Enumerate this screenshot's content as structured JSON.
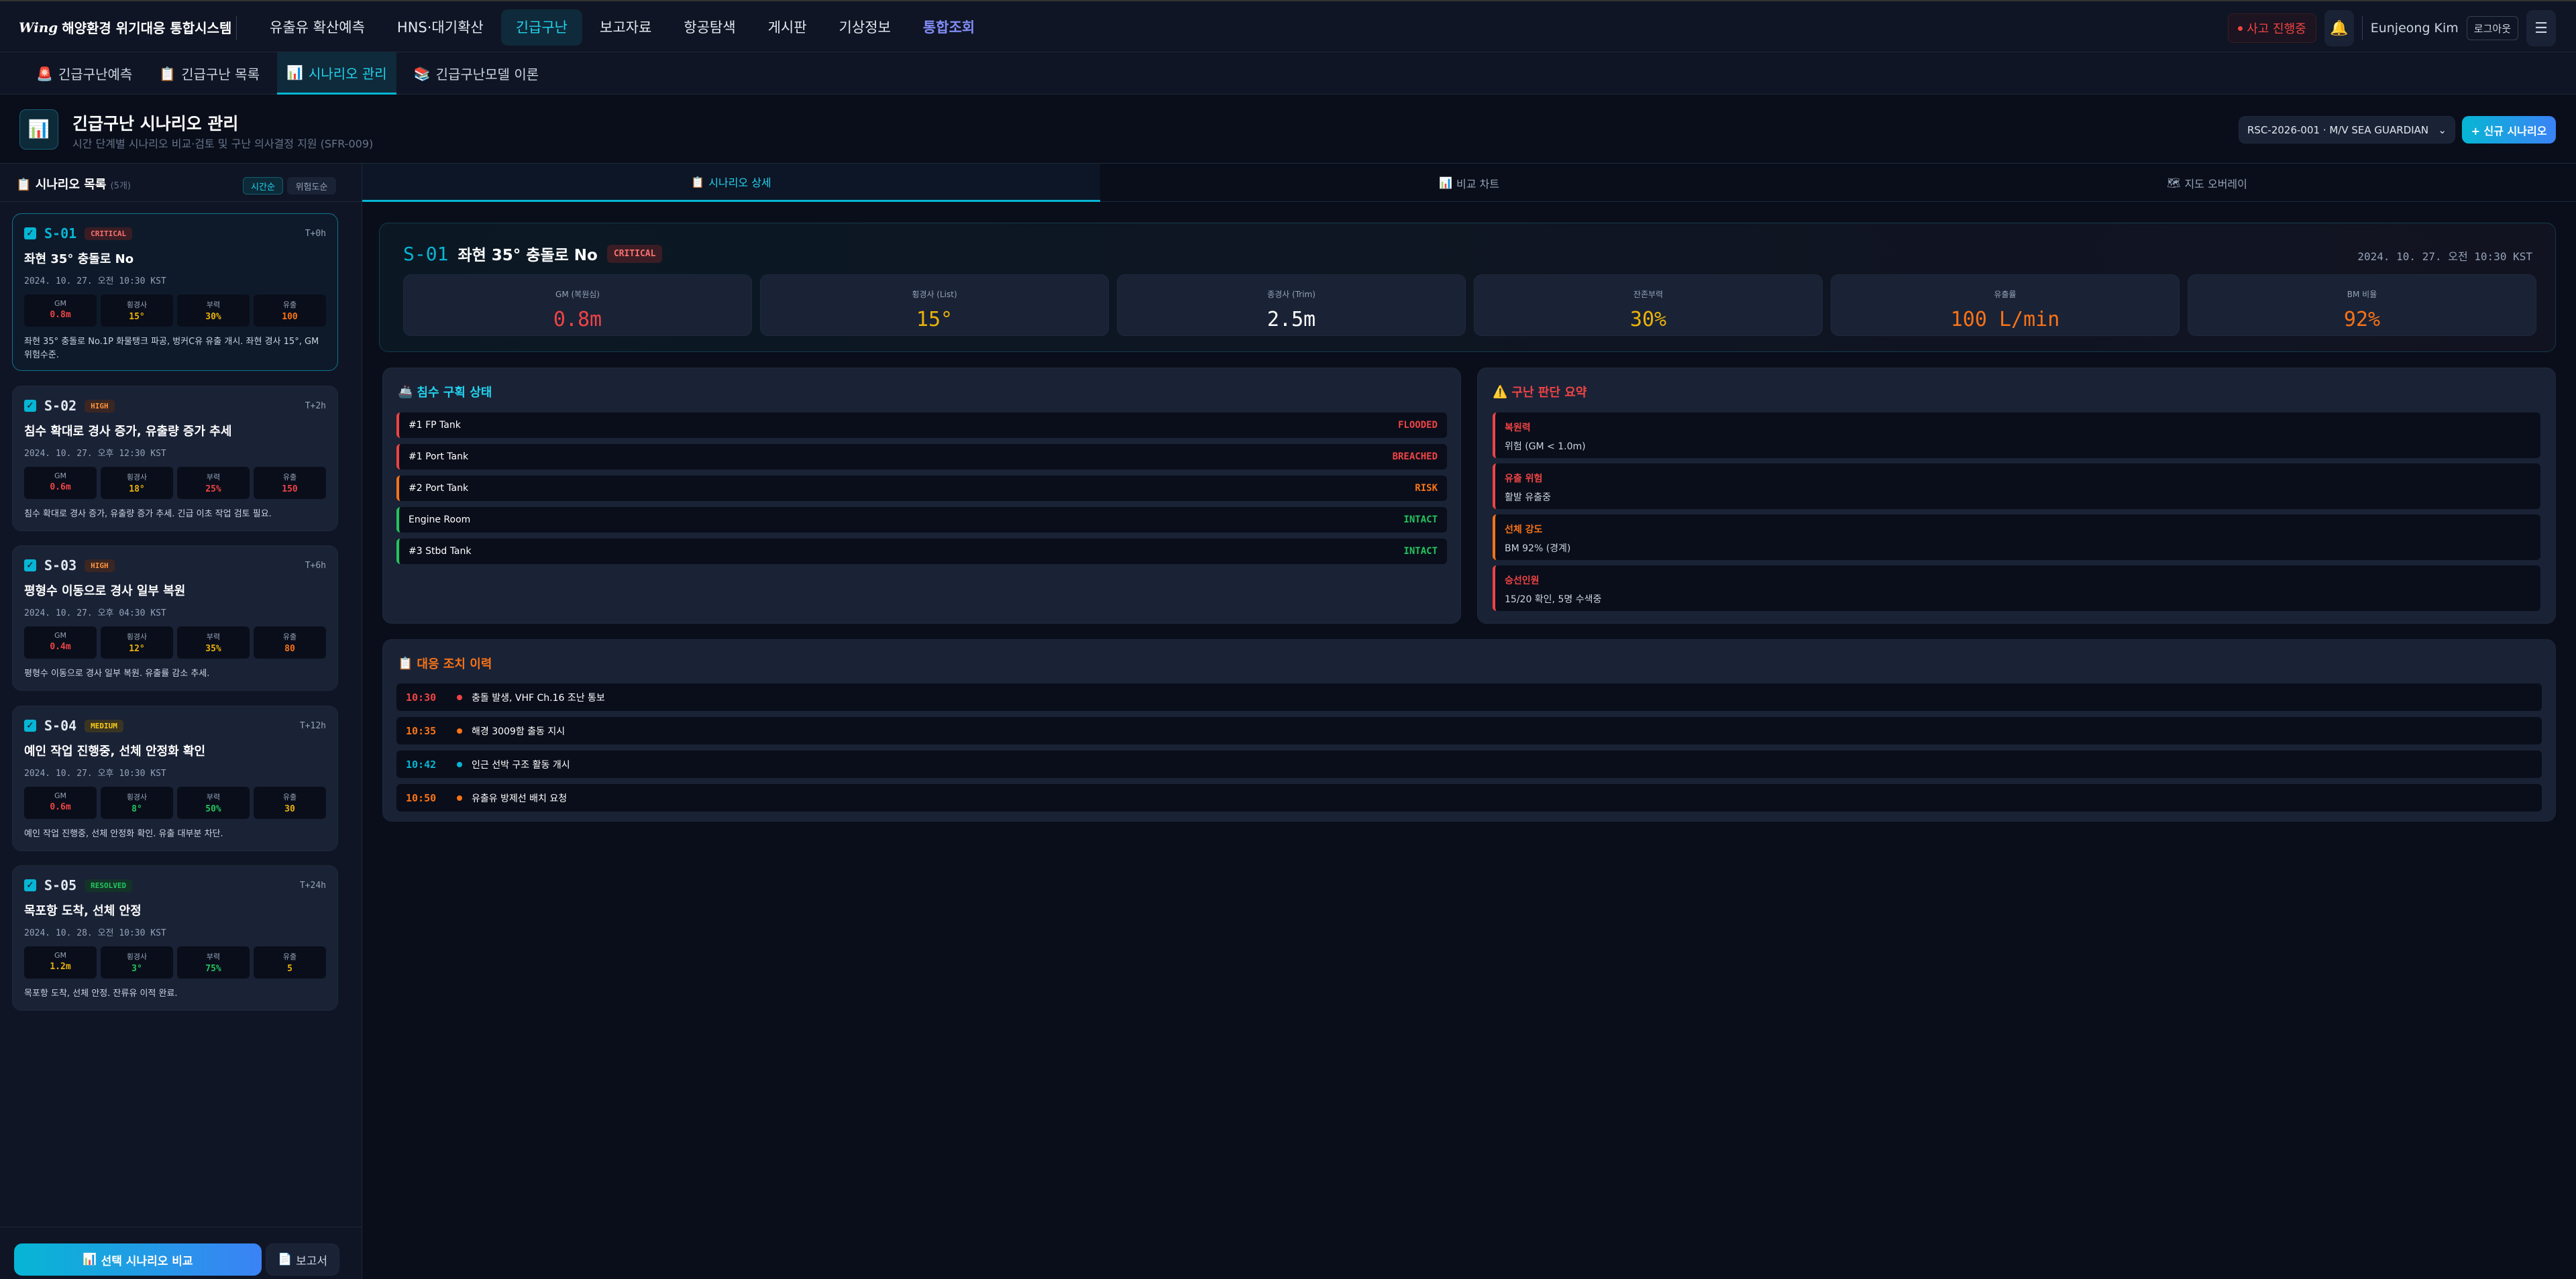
{
  "app": {
    "logo_mark": "Wing",
    "title": "해양환경 위기대응 통합시스템"
  },
  "nav": {
    "items": [
      {
        "label": "유출유 확산예측",
        "active": false
      },
      {
        "label": "HNS·대기확산",
        "active": false
      },
      {
        "label": "긴급구난",
        "active": true
      },
      {
        "label": "보고자료",
        "active": false
      },
      {
        "label": "항공탐색",
        "active": false
      },
      {
        "label": "게시판",
        "active": false
      },
      {
        "label": "기상정보",
        "active": false
      },
      {
        "label": "통합조회",
        "active": false,
        "special": true
      }
    ],
    "accident_status": "사고 진행중",
    "bell_icon": "bell-icon",
    "user_name": "Eunjeong Kim",
    "logout": "로그아웃",
    "menu_icon": "hamburger-icon"
  },
  "subtabs": [
    {
      "icon": "🚨",
      "label": "긴급구난예측",
      "active": false
    },
    {
      "icon": "📋",
      "label": "긴급구난 목록",
      "active": false
    },
    {
      "icon": "📊",
      "label": "시나리오 관리",
      "active": true
    },
    {
      "icon": "📚",
      "label": "긴급구난모델 이론",
      "active": false
    }
  ],
  "page": {
    "icon": "📊",
    "title": "긴급구난 시나리오 관리",
    "subtitle": "시간 단계별 시나리오 비교·검토 및 구난 의사결정 지원 (SFR-009)",
    "incident_select": "RSC-2026-001 · M/V SEA GUARDIAN",
    "new_scenario": "+ 신규 시나리오"
  },
  "sidebar": {
    "title": "시나리오 목록",
    "count": "(5개)",
    "sort_time": "시간순",
    "sort_risk": "위험도순",
    "metric_labels": [
      "GM",
      "횡경사",
      "부력",
      "유출"
    ],
    "scenarios": [
      {
        "id": "S-01",
        "level": "CRITICAL",
        "t": "T+0h",
        "title": "좌현 35° 충돌로 No",
        "date": "2024. 10. 27. 오전 10:30 KST",
        "metrics": [
          {
            "v": "0.8m",
            "c": "#ef4444"
          },
          {
            "v": "15°",
            "c": "#eab308"
          },
          {
            "v": "30%",
            "c": "#eab308"
          },
          {
            "v": "100",
            "c": "#f97316"
          }
        ],
        "desc": "좌현 35° 충돌로 No.1P 화물탱크 파공, 벙커C유 유출 개시. 좌현 경사 15°, GM 위험수준.",
        "selected": true
      },
      {
        "id": "S-02",
        "level": "HIGH",
        "t": "T+2h",
        "title": "침수 확대로 경사 증가, 유출량 증가 추세",
        "date": "2024. 10. 27. 오후 12:30 KST",
        "metrics": [
          {
            "v": "0.6m",
            "c": "#ef4444"
          },
          {
            "v": "18°",
            "c": "#eab308"
          },
          {
            "v": "25%",
            "c": "#ef4444"
          },
          {
            "v": "150",
            "c": "#ef4444"
          }
        ],
        "desc": "침수 확대로 경사 증가, 유출량 증가 추세. 긴급 이초 작업 검토 필요.",
        "selected": false
      },
      {
        "id": "S-03",
        "level": "HIGH",
        "t": "T+6h",
        "title": "평형수 이동으로 경사 일부 복원",
        "date": "2024. 10. 27. 오후 04:30 KST",
        "metrics": [
          {
            "v": "0.4m",
            "c": "#ef4444"
          },
          {
            "v": "12°",
            "c": "#eab308"
          },
          {
            "v": "35%",
            "c": "#eab308"
          },
          {
            "v": "80",
            "c": "#f97316"
          }
        ],
        "desc": "평형수 이동으로 경사 일부 복원. 유출률 감소 추세.",
        "selected": false
      },
      {
        "id": "S-04",
        "level": "MEDIUM",
        "t": "T+12h",
        "title": "예인 작업 진행중, 선체 안정화 확인",
        "date": "2024. 10. 27. 오후 10:30 KST",
        "metrics": [
          {
            "v": "0.6m",
            "c": "#ef4444"
          },
          {
            "v": "8°",
            "c": "#22c55e"
          },
          {
            "v": "50%",
            "c": "#22c55e"
          },
          {
            "v": "30",
            "c": "#eab308"
          }
        ],
        "desc": "예인 작업 진행중, 선체 안정화 확인. 유출 대부분 차단.",
        "selected": false
      },
      {
        "id": "S-05",
        "level": "RESOLVED",
        "t": "T+24h",
        "title": "목포항 도착, 선체 안정",
        "date": "2024. 10. 28. 오전 10:30 KST",
        "metrics": [
          {
            "v": "1.2m",
            "c": "#eab308"
          },
          {
            "v": "3°",
            "c": "#22c55e"
          },
          {
            "v": "75%",
            "c": "#22c55e"
          },
          {
            "v": "5",
            "c": "#eab308"
          }
        ],
        "desc": "목포항 도착, 선체 안정. 잔류유 이적 완료.",
        "selected": false
      }
    ],
    "level_colors": {
      "CRITICAL": {
        "fg": "#f87171",
        "bg": "#3a1d24"
      },
      "HIGH": {
        "fg": "#fb923c",
        "bg": "#3a2622"
      },
      "MEDIUM": {
        "fg": "#facc15",
        "bg": "#3a3422"
      },
      "RESOLVED": {
        "fg": "#22c55e",
        "bg": "#143328"
      }
    },
    "compare_button": "선택 시나리오 비교",
    "report_button": "보고서"
  },
  "main_tabs": [
    {
      "icon": "📋",
      "label": "시나리오 상세",
      "active": true
    },
    {
      "icon": "📊",
      "label": "비교 차트",
      "active": false
    },
    {
      "icon": "🗺",
      "label": "지도 오버레이",
      "active": false
    }
  ],
  "detail": {
    "id": "S-01",
    "title": "좌현 35° 충돌로 No",
    "level": "CRITICAL",
    "time": "2024. 10. 27. 오전 10:30 KST",
    "metrics": [
      {
        "label": "GM (복원심)",
        "value": "0.8m",
        "color": "#ef4444"
      },
      {
        "label": "횡경사 (List)",
        "value": "15°",
        "color": "#eab308"
      },
      {
        "label": "종경사 (Trim)",
        "value": "2.5m",
        "color": "#ffffff"
      },
      {
        "label": "잔존부력",
        "value": "30%",
        "color": "#eab308"
      },
      {
        "label": "유출률",
        "value": "100 L/min",
        "color": "#f97316"
      },
      {
        "label": "BM 비율",
        "value": "92%",
        "color": "#f97316"
      }
    ]
  },
  "compartments": {
    "icon": "🚢",
    "title": "침수 구획 상태",
    "items": [
      {
        "name": "#1 FP Tank",
        "status": "FLOODED",
        "color": "#ef4444"
      },
      {
        "name": "#1 Port Tank",
        "status": "BREACHED",
        "color": "#ef4444"
      },
      {
        "name": "#2 Port Tank",
        "status": "RISK",
        "color": "#f97316"
      },
      {
        "name": "Engine Room",
        "status": "INTACT",
        "color": "#22c55e"
      },
      {
        "name": "#3 Stbd Tank",
        "status": "INTACT",
        "color": "#22c55e"
      }
    ]
  },
  "summary": {
    "icon": "⚠️",
    "title": "구난 판단 요약",
    "items": [
      {
        "label": "복원력",
        "value": "위험 (GM < 1.0m)",
        "color": "#ef4444"
      },
      {
        "label": "유출 위험",
        "value": "활발 유출중",
        "color": "#ef4444"
      },
      {
        "label": "선체 강도",
        "value": "BM 92% (경계)",
        "color": "#f97316"
      },
      {
        "label": "승선인원",
        "value": "15/20 확인, 5명 수색중",
        "color": "#ef4444"
      }
    ]
  },
  "history": {
    "icon": "📋",
    "title": "대응 조치 이력",
    "items": [
      {
        "time": "10:30",
        "text": "충돌 발생, VHF Ch.16 조난 통보",
        "color": "#ef4444"
      },
      {
        "time": "10:35",
        "text": "해경 3009함 출동 지시",
        "color": "#f97316"
      },
      {
        "time": "10:42",
        "text": "인근 선박 구조 활동 개시",
        "color": "#06b6d4"
      },
      {
        "time": "10:50",
        "text": "유출유 방제선 배치 요청",
        "color": "#f97316"
      }
    ]
  }
}
